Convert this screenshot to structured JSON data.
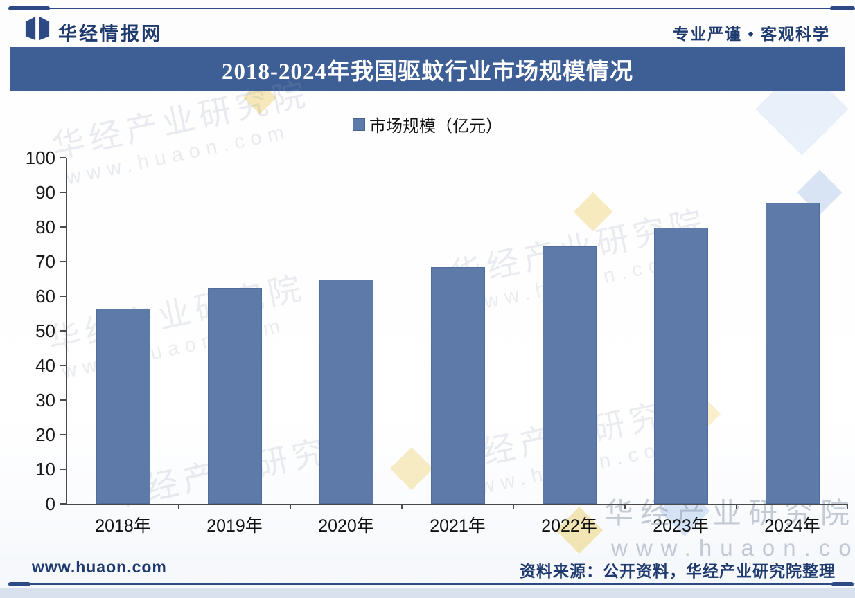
{
  "header": {
    "brand": "华经情报网",
    "tagline": "专业严谨 • 客观科学"
  },
  "title_bar": {
    "text": "2018-2024年我国驱蚊行业市场规模情况",
    "bg_color": "#3e5e96"
  },
  "legend": {
    "label": "市场规模（亿元）",
    "marker_color": "#5d7aa9"
  },
  "chart_data": {
    "type": "bar",
    "title": "2018-2024年我国驱蚊行业市场规模情况",
    "categories": [
      "2018年",
      "2019年",
      "2020年",
      "2021年",
      "2022年",
      "2023年",
      "2024年"
    ],
    "series": [
      {
        "name": "市场规模（亿元）",
        "values": [
          56.4,
          62.4,
          64.8,
          68.5,
          74.5,
          79.9,
          87.0
        ]
      }
    ],
    "ylabel": "",
    "xlabel": "",
    "ylim": [
      0,
      100
    ],
    "yticks": [
      0,
      10,
      20,
      30,
      40,
      50,
      60,
      70,
      80,
      90,
      100
    ],
    "grid": false,
    "legend_position": "top",
    "bar_color": "#5d7aa9",
    "bar_border_color": "#4e6c9d"
  },
  "watermark": {
    "line1": "华经产业研究院",
    "line2": "www.huaon.com"
  },
  "footer": {
    "site": "www.huaon.com",
    "source": "资料来源：公开资料，华经产业研究院整理"
  }
}
